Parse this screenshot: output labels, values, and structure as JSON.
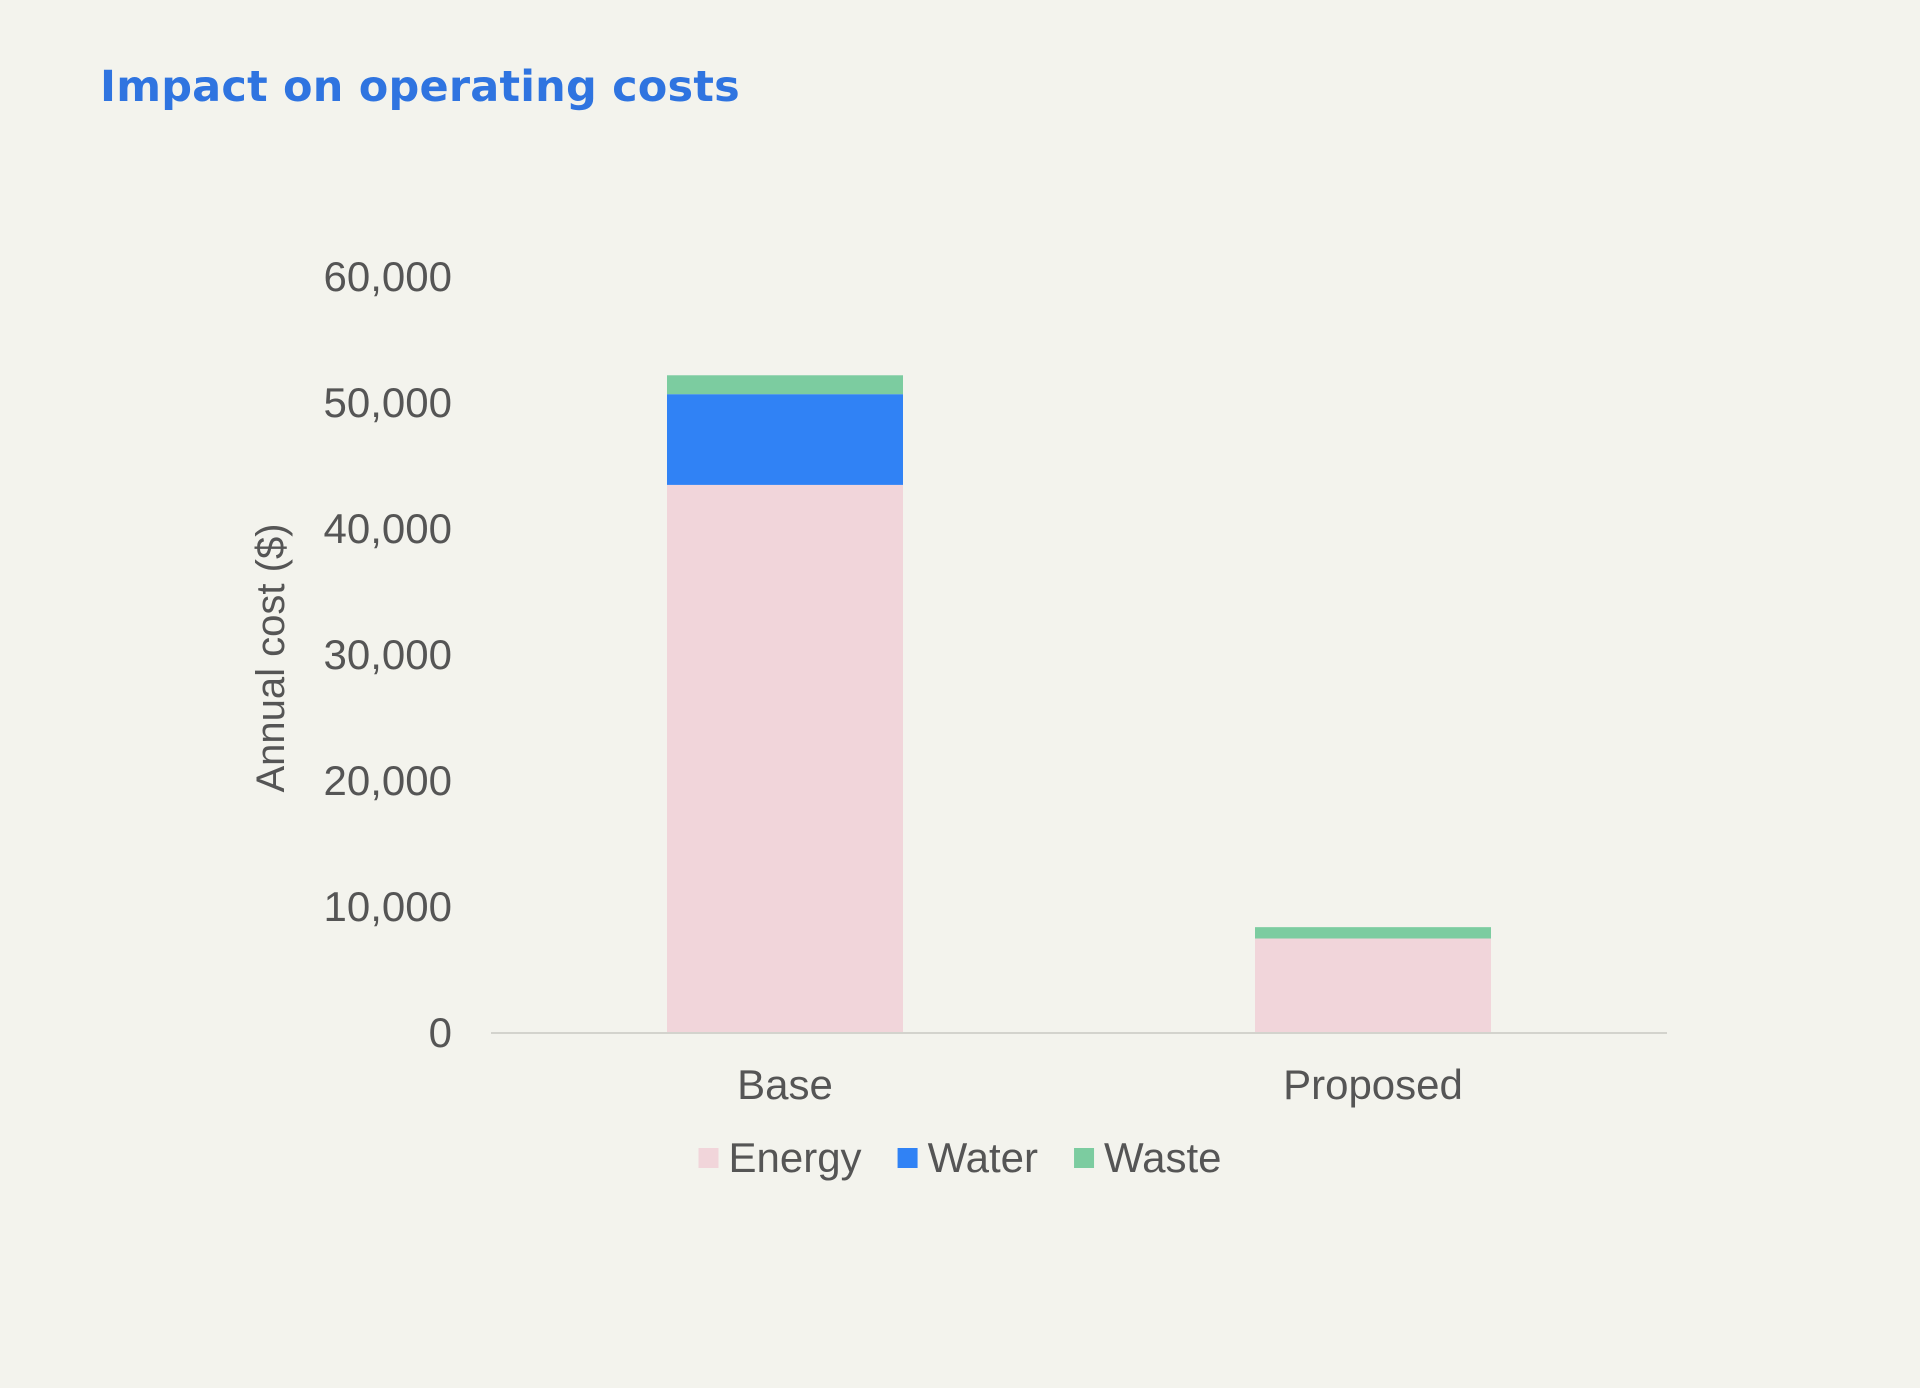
{
  "chart_data": {
    "type": "bar",
    "stacked": true,
    "title": "Impact on operating costs",
    "xlabel": "",
    "ylabel": "Annual cost ($)",
    "categories": [
      "Base",
      "Proposed"
    ],
    "series": [
      {
        "name": "Energy",
        "color": "#f1d5da",
        "values": [
          43500,
          7500
        ]
      },
      {
        "name": "Water",
        "color": "#3082f5",
        "values": [
          7200,
          0
        ]
      },
      {
        "name": "Waste",
        "color": "#7ccca0",
        "values": [
          1500,
          900
        ]
      }
    ],
    "ylim": [
      0,
      60000
    ],
    "yticks": [
      0,
      10000,
      20000,
      30000,
      40000,
      50000,
      60000
    ],
    "ytick_labels": [
      "0",
      "10,000",
      "20,000",
      "30,000",
      "40,000",
      "50,000",
      "60,000"
    ],
    "grid": false,
    "legend_position": "bottom-center"
  }
}
